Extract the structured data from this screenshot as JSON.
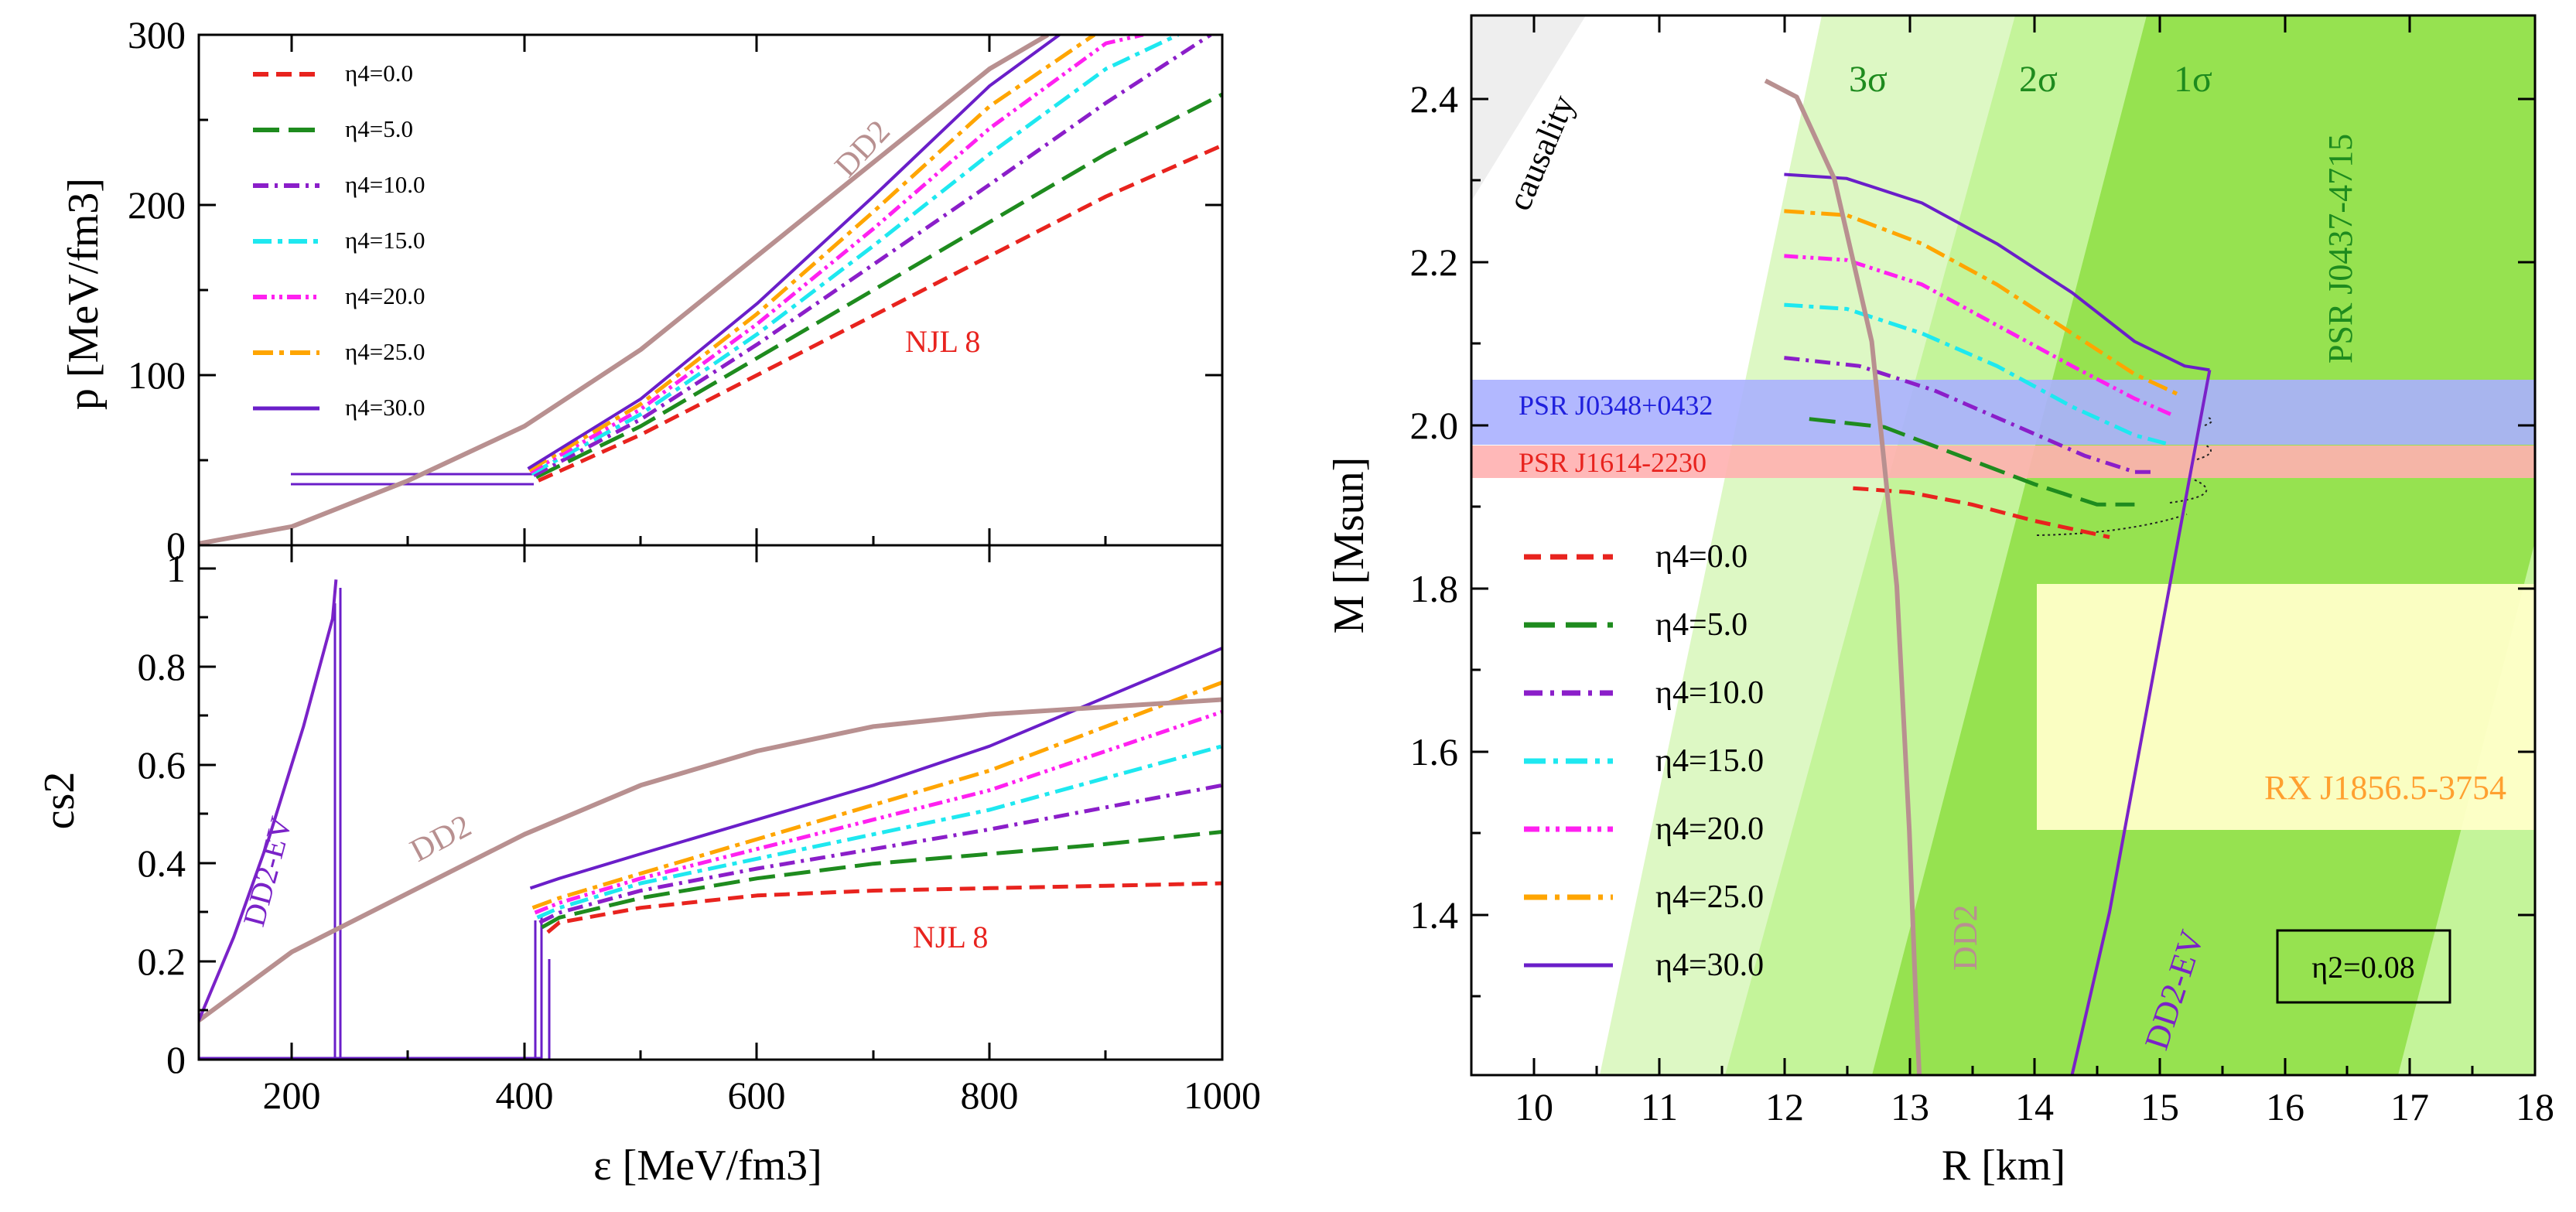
{
  "colors": {
    "eta0": "#e8231e",
    "eta5": "#1e8b1e",
    "eta10": "#8b1ec9",
    "eta15": "#1ee8f0",
    "eta20": "#ff20f0",
    "eta25": "#ffa500",
    "eta30": "#6a1ec9",
    "dd2": "#b89090",
    "dd2ev": "#7a22c8",
    "band_blue": "#aab0ff",
    "band_red": "#ffb0b0",
    "rx_box": "#ffffc8",
    "green1": "#96e250",
    "green2": "#c4f49a",
    "green3": "#ddf8c4",
    "causality": "#eeeeee",
    "label_green": "#1e8b1e",
    "label_orange": "#ffa030"
  },
  "chart_data": [
    {
      "id": "pressure",
      "type": "line",
      "xlabel": "ε [MeV/fm3]",
      "ylabel": "p [MeV/fm3]",
      "xlim": [
        120,
        1000
      ],
      "ylim": [
        0,
        300
      ],
      "yticks": [
        "0",
        "100",
        "200",
        "300"
      ],
      "annotations": [
        "DD2",
        "NJL 8"
      ],
      "legend": [
        "η4=0.0",
        "η4=5.0",
        "η4=10.0",
        "η4=15.0",
        "η4=20.0",
        "η4=25.0",
        "η4=30.0"
      ],
      "series": [
        {
          "name": "η4=0.0",
          "x": [
            412,
            500,
            600,
            700,
            800,
            900,
            1000
          ],
          "y": [
            38,
            65,
            100,
            135,
            170,
            205,
            235
          ]
        },
        {
          "name": "η4=5.0",
          "x": [
            410,
            500,
            600,
            700,
            800,
            900,
            1000
          ],
          "y": [
            40,
            70,
            110,
            150,
            190,
            230,
            265
          ]
        },
        {
          "name": "η4=10.0",
          "x": [
            408,
            500,
            600,
            700,
            800,
            900,
            990
          ],
          "y": [
            41,
            74,
            118,
            165,
            212,
            260,
            300
          ]
        },
        {
          "name": "η4=15.0",
          "x": [
            406,
            500,
            600,
            700,
            800,
            900,
            962
          ],
          "y": [
            42,
            77,
            124,
            176,
            230,
            280,
            300
          ]
        },
        {
          "name": "η4=20.0",
          "x": [
            405,
            500,
            600,
            700,
            800,
            900,
            932
          ],
          "y": [
            43,
            80,
            130,
            186,
            245,
            295,
            300
          ]
        },
        {
          "name": "η4=25.0",
          "x": [
            404,
            500,
            600,
            700,
            800,
            890
          ],
          "y": [
            44,
            83,
            136,
            196,
            258,
            300
          ]
        },
        {
          "name": "η4=30.0",
          "x": [
            403,
            500,
            600,
            700,
            800,
            860
          ],
          "y": [
            45,
            86,
            142,
            205,
            270,
            300
          ]
        },
        {
          "name": "DD2",
          "x": [
            120,
            200,
            300,
            400,
            500,
            600,
            700,
            800,
            850
          ],
          "y": [
            1,
            11,
            38,
            70,
            115,
            170,
            225,
            280,
            300
          ]
        }
      ]
    },
    {
      "id": "sound_speed",
      "type": "line",
      "xlabel": "ε [MeV/fm3]",
      "ylabel": "cs2",
      "xlim": [
        120,
        1000
      ],
      "ylim": [
        0,
        1.05
      ],
      "xticks": [
        "200",
        "400",
        "600",
        "800",
        "1000"
      ],
      "yticks": [
        "0",
        "0.2",
        "0.4",
        "0.6",
        "0.8",
        "1"
      ],
      "annotations": [
        "DD2-EV",
        "DD2",
        "NJL 8"
      ],
      "series": [
        {
          "name": "η4=0.0",
          "x": [
            420,
            430,
            500,
            600,
            700,
            800,
            900,
            1000
          ],
          "y": [
            0.26,
            0.28,
            0.31,
            0.335,
            0.345,
            0.35,
            0.355,
            0.36
          ]
        },
        {
          "name": "η4=5.0",
          "x": [
            415,
            430,
            500,
            600,
            700,
            800,
            900,
            1000
          ],
          "y": [
            0.27,
            0.29,
            0.33,
            0.37,
            0.4,
            0.42,
            0.44,
            0.465
          ]
        },
        {
          "name": "η4=10.0",
          "x": [
            413,
            430,
            500,
            600,
            700,
            800,
            900,
            1000
          ],
          "y": [
            0.28,
            0.3,
            0.345,
            0.39,
            0.43,
            0.47,
            0.515,
            0.56
          ]
        },
        {
          "name": "η4=15.0",
          "x": [
            411,
            430,
            500,
            600,
            700,
            800,
            900,
            1000
          ],
          "y": [
            0.29,
            0.31,
            0.36,
            0.41,
            0.46,
            0.51,
            0.575,
            0.64
          ]
        },
        {
          "name": "η4=20.0",
          "x": [
            409,
            430,
            500,
            600,
            700,
            800,
            900,
            1000
          ],
          "y": [
            0.3,
            0.32,
            0.37,
            0.43,
            0.49,
            0.55,
            0.63,
            0.71
          ]
        },
        {
          "name": "η4=25.0",
          "x": [
            407,
            430,
            500,
            600,
            700,
            800,
            900,
            1000
          ],
          "y": [
            0.31,
            0.33,
            0.38,
            0.45,
            0.52,
            0.59,
            0.68,
            0.77
          ]
        },
        {
          "name": "η4=30.0",
          "x": [
            405,
            430,
            500,
            600,
            700,
            800,
            900,
            1000
          ],
          "y": [
            0.35,
            0.37,
            0.42,
            0.49,
            0.56,
            0.64,
            0.74,
            0.84
          ]
        },
        {
          "name": "DD2",
          "x": [
            120,
            200,
            300,
            400,
            500,
            600,
            700,
            800,
            900,
            1000
          ],
          "y": [
            0.08,
            0.22,
            0.34,
            0.46,
            0.56,
            0.63,
            0.68,
            0.705,
            0.72,
            0.735
          ]
        },
        {
          "name": "DD2-EV",
          "x": [
            120,
            150,
            180,
            210,
            235,
            238
          ],
          "y": [
            0.08,
            0.25,
            0.45,
            0.68,
            0.9,
            0.98
          ]
        }
      ]
    },
    {
      "id": "mass_radius",
      "type": "line",
      "xlabel": "R [km]",
      "ylabel": "M [Msun]",
      "xlim": [
        9.5,
        18
      ],
      "ylim": [
        1.2,
        2.5
      ],
      "xticks": [
        "10",
        "11",
        "12",
        "13",
        "14",
        "15",
        "16",
        "17",
        "18"
      ],
      "yticks": [
        "1.4",
        "1.6",
        "1.8",
        "2.0",
        "2.2",
        "2.4"
      ],
      "bands": [
        {
          "name": "PSR J0348+0432",
          "ylim": [
            2.01,
            2.05
          ]
        },
        {
          "name": "PSR J1614-2230",
          "ylim": [
            1.93,
            1.97
          ]
        },
        {
          "name": "RX J1856.5-3754",
          "xlim": [
            14,
            18
          ],
          "ylim": [
            1.5,
            1.8
          ]
        }
      ],
      "region_labels": [
        "causality",
        "3σ",
        "2σ",
        "1σ",
        "PSR J0437-4715"
      ],
      "annotations": [
        "DD2",
        "DD2-EV"
      ],
      "inset_label": "η2=0.08",
      "legend": [
        "η4=0.0",
        "η4=5.0",
        "η4=10.0",
        "η4=15.0",
        "η4=20.0",
        "η4=25.0",
        "η4=30.0"
      ],
      "series": [
        {
          "name": "η4=0.0",
          "x": [
            12.55,
            13.0,
            13.5,
            14.0,
            14.6
          ],
          "y": [
            1.92,
            1.915,
            1.9,
            1.88,
            1.86
          ]
        },
        {
          "name": "η4=5.0",
          "x": [
            12.2,
            12.8,
            13.4,
            14.0,
            14.5,
            14.8
          ],
          "y": [
            2.005,
            1.995,
            1.96,
            1.925,
            1.9,
            1.9
          ]
        },
        {
          "name": "η4=10.0",
          "x": [
            12.0,
            12.6,
            13.2,
            13.8,
            14.4,
            14.8,
            14.95
          ],
          "y": [
            2.08,
            2.07,
            2.04,
            2.0,
            1.96,
            1.94,
            1.94
          ]
        },
        {
          "name": "η4=15.0",
          "x": [
            12.0,
            12.5,
            13.1,
            13.7,
            14.3,
            14.8,
            15.05
          ],
          "y": [
            2.145,
            2.14,
            2.11,
            2.07,
            2.02,
            1.985,
            1.975
          ]
        },
        {
          "name": "η4=20.0",
          "x": [
            12.0,
            12.5,
            13.1,
            13.7,
            14.3,
            14.8,
            15.1
          ],
          "y": [
            2.205,
            2.2,
            2.17,
            2.12,
            2.07,
            2.03,
            2.01
          ]
        },
        {
          "name": "η4=25.0",
          "x": [
            12.0,
            12.5,
            13.1,
            13.7,
            14.3,
            14.8,
            15.15
          ],
          "y": [
            2.26,
            2.255,
            2.22,
            2.17,
            2.11,
            2.06,
            2.035
          ]
        },
        {
          "name": "η4=30.0",
          "x": [
            12.0,
            12.5,
            13.1,
            13.7,
            14.3,
            14.8,
            15.2,
            15.4
          ],
          "y": [
            2.305,
            2.3,
            2.27,
            2.22,
            2.16,
            2.1,
            2.07,
            2.065
          ]
        },
        {
          "name": "DD2",
          "x": [
            11.85,
            12.1,
            12.4,
            12.7,
            12.9,
            13.0,
            13.05,
            13.08
          ],
          "y": [
            2.42,
            2.4,
            2.3,
            2.1,
            1.8,
            1.5,
            1.3,
            1.2
          ]
        },
        {
          "name": "DD2-EV",
          "x": [
            14.3,
            14.6,
            14.9,
            15.2,
            15.4
          ],
          "y": [
            1.2,
            1.4,
            1.65,
            1.9,
            2.065
          ]
        }
      ]
    }
  ]
}
